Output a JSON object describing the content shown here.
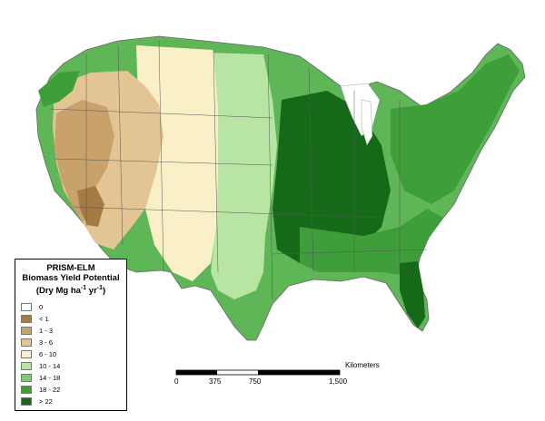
{
  "legend": {
    "title_line1": "PRISM-ELM",
    "title_line2": "Biomass Yield Potential",
    "title_line3_prefix": "(Dry Mg ha",
    "exp1": "-1",
    "title_line3_mid": " yr",
    "exp2": "-1",
    "title_line3_suffix": ")",
    "classes": [
      {
        "label": "0",
        "color": "#ffffff"
      },
      {
        "label": "< 1",
        "color": "#a57a43"
      },
      {
        "label": "1 - 3",
        "color": "#c9a26b"
      },
      {
        "label": "3 - 6",
        "color": "#e3c594"
      },
      {
        "label": "6 - 10",
        "color": "#f9f0c8"
      },
      {
        "label": "10 - 14",
        "color": "#b8e4a4"
      },
      {
        "label": "14 - 18",
        "color": "#7ccb6c"
      },
      {
        "label": "18 - 22",
        "color": "#3e9f3a"
      },
      {
        "label": "> 22",
        "color": "#17691a"
      }
    ]
  },
  "scale": {
    "units": "Kilometers",
    "ticks": [
      "0",
      "375",
      "750",
      "1,500"
    ]
  }
}
